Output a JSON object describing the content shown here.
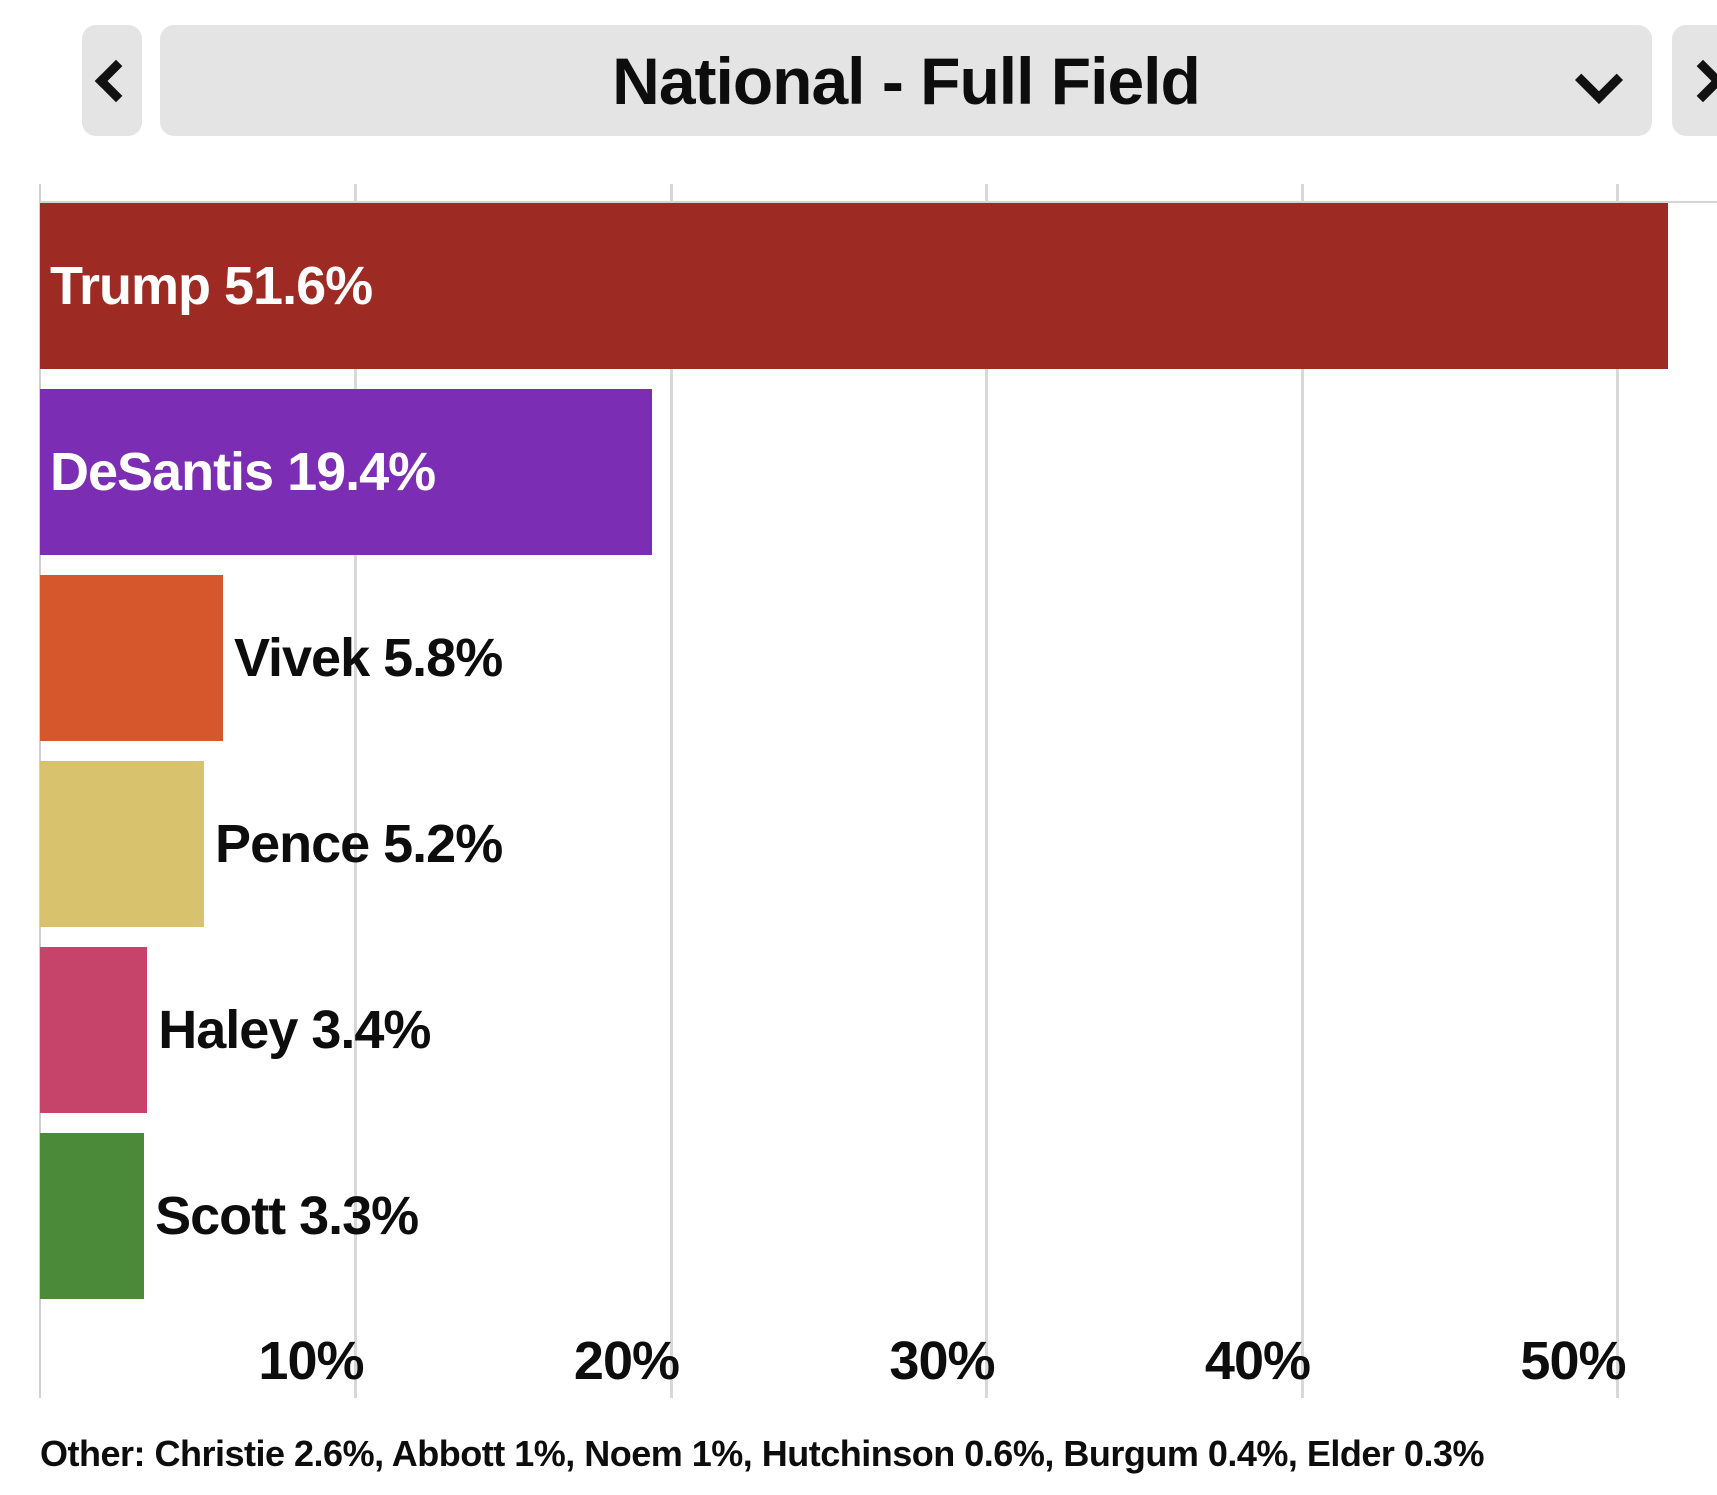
{
  "header": {
    "title": "National - Full Field",
    "prev_icon": "chevron-left",
    "next_icon": "chevron-right",
    "dropdown_icon": "chevron-down",
    "button_bg": "#e4e4e4"
  },
  "chart_data": {
    "type": "bar",
    "orientation": "horizontal",
    "title": "National - Full Field",
    "categories": [
      "Trump",
      "DeSantis",
      "Vivek",
      "Pence",
      "Haley",
      "Scott"
    ],
    "values": [
      51.6,
      19.4,
      5.8,
      5.2,
      3.4,
      3.3
    ],
    "bar_labels": [
      "Trump 51.6%",
      "DeSantis 19.4%",
      "Vivek 5.8%",
      "Pence 5.2%",
      "Haley 3.4%",
      "Scott 3.3%"
    ],
    "bar_colors": [
      "#9d2b24",
      "#7b2eb3",
      "#d5572b",
      "#d8c26e",
      "#c64369",
      "#4a8a38"
    ],
    "label_position": [
      "inside",
      "inside",
      "outside",
      "outside",
      "outside",
      "outside"
    ],
    "x_tick_labels": [
      "10%",
      "20%",
      "30%",
      "40%",
      "50%"
    ],
    "x_tick_values": [
      10,
      20,
      30,
      40,
      50
    ],
    "xlim": [
      0,
      53.2
    ],
    "grid": "vertical",
    "gridline_color": "#d8d8d8",
    "legend": "none",
    "other": [
      {
        "name": "Christie",
        "value": 2.6
      },
      {
        "name": "Abbott",
        "value": 1
      },
      {
        "name": "Noem",
        "value": 1
      },
      {
        "name": "Hutchinson",
        "value": 0.6
      },
      {
        "name": "Burgum",
        "value": 0.4
      },
      {
        "name": "Elder",
        "value": 0.3
      }
    ]
  },
  "footer": {
    "other_text": "Other: Christie 2.6%, Abbott 1%, Noem 1%, Hutchinson 0.6%, Burgum 0.4%, Elder 0.3%"
  }
}
